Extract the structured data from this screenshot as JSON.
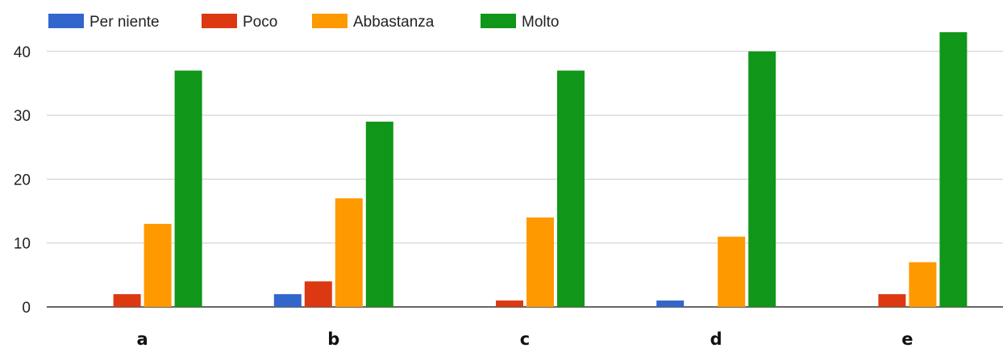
{
  "chart_data": {
    "type": "bar",
    "categories": [
      "a",
      "b",
      "c",
      "d",
      "e"
    ],
    "series": [
      {
        "name": "Per niente",
        "color": "#3366cc",
        "values": [
          0,
          2,
          0,
          1,
          0
        ]
      },
      {
        "name": "Poco",
        "color": "#dc3912",
        "values": [
          2,
          4,
          1,
          0,
          2
        ]
      },
      {
        "name": "Abbastanza",
        "color": "#ff9900",
        "values": [
          13,
          17,
          14,
          11,
          7
        ]
      },
      {
        "name": "Molto",
        "color": "#109618",
        "values": [
          37,
          29,
          37,
          40,
          43
        ]
      }
    ],
    "yticks": [
      "0",
      "10",
      "20",
      "30",
      "40"
    ],
    "ylim": [
      0,
      44
    ],
    "grid": true,
    "legend": "top"
  }
}
